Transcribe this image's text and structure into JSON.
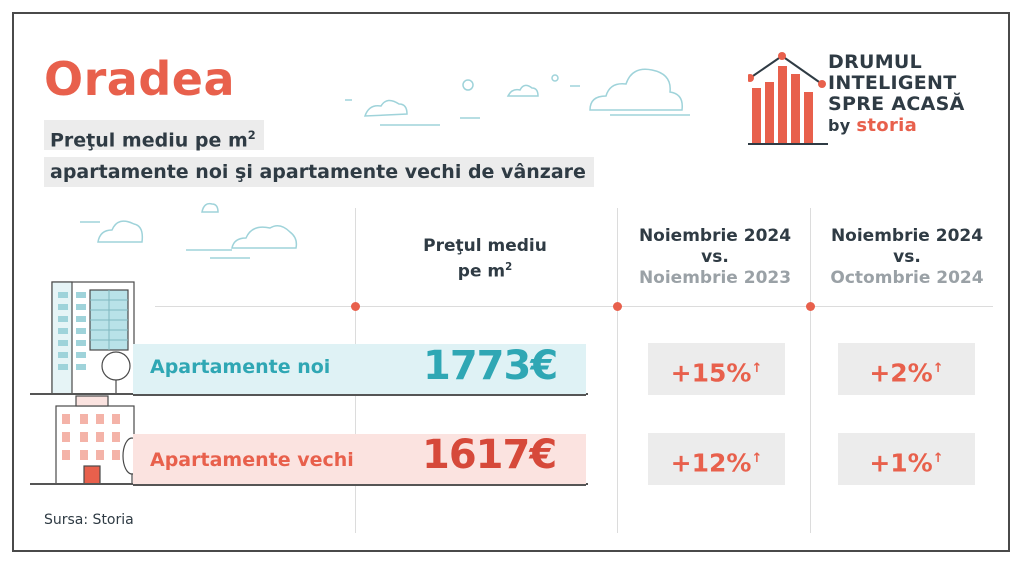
{
  "city": "Oradea",
  "subtitle_line1": "Preţul mediu pe m",
  "subtitle_line1_sup": "2",
  "subtitle_line2": "apartamente noi şi apartamente vechi de vânzare",
  "logo": {
    "line1": "DRUMUL",
    "line2": "INTELIGENT",
    "line3": "SPRE ACASĂ",
    "by": "by",
    "brand": "storia",
    "accent_color": "#e8604c"
  },
  "columns": {
    "price_header_line1": "Preţul mediu",
    "price_header_line2": "pe m",
    "price_header_sup": "2",
    "yoy_line1": "Noiembrie 2024",
    "yoy_line2": "vs.",
    "yoy_line3": "Noiembrie 2023",
    "mom_line1": "Noiembrie 2024",
    "mom_line2": "vs.",
    "mom_line3": "Octombrie 2024"
  },
  "rows": [
    {
      "label": "Apartamente noi",
      "price": "1773€",
      "yoy": "+15%",
      "mom": "+2%"
    },
    {
      "label": "Apartamente vechi",
      "price": "1617€",
      "yoy": "+12%",
      "mom": "+1%"
    }
  ],
  "arrow": "↑",
  "source": "Sursa: Storia",
  "colors": {
    "teal": "#2fa7b4",
    "coral": "#e8604c",
    "dark": "#2f3b44"
  }
}
